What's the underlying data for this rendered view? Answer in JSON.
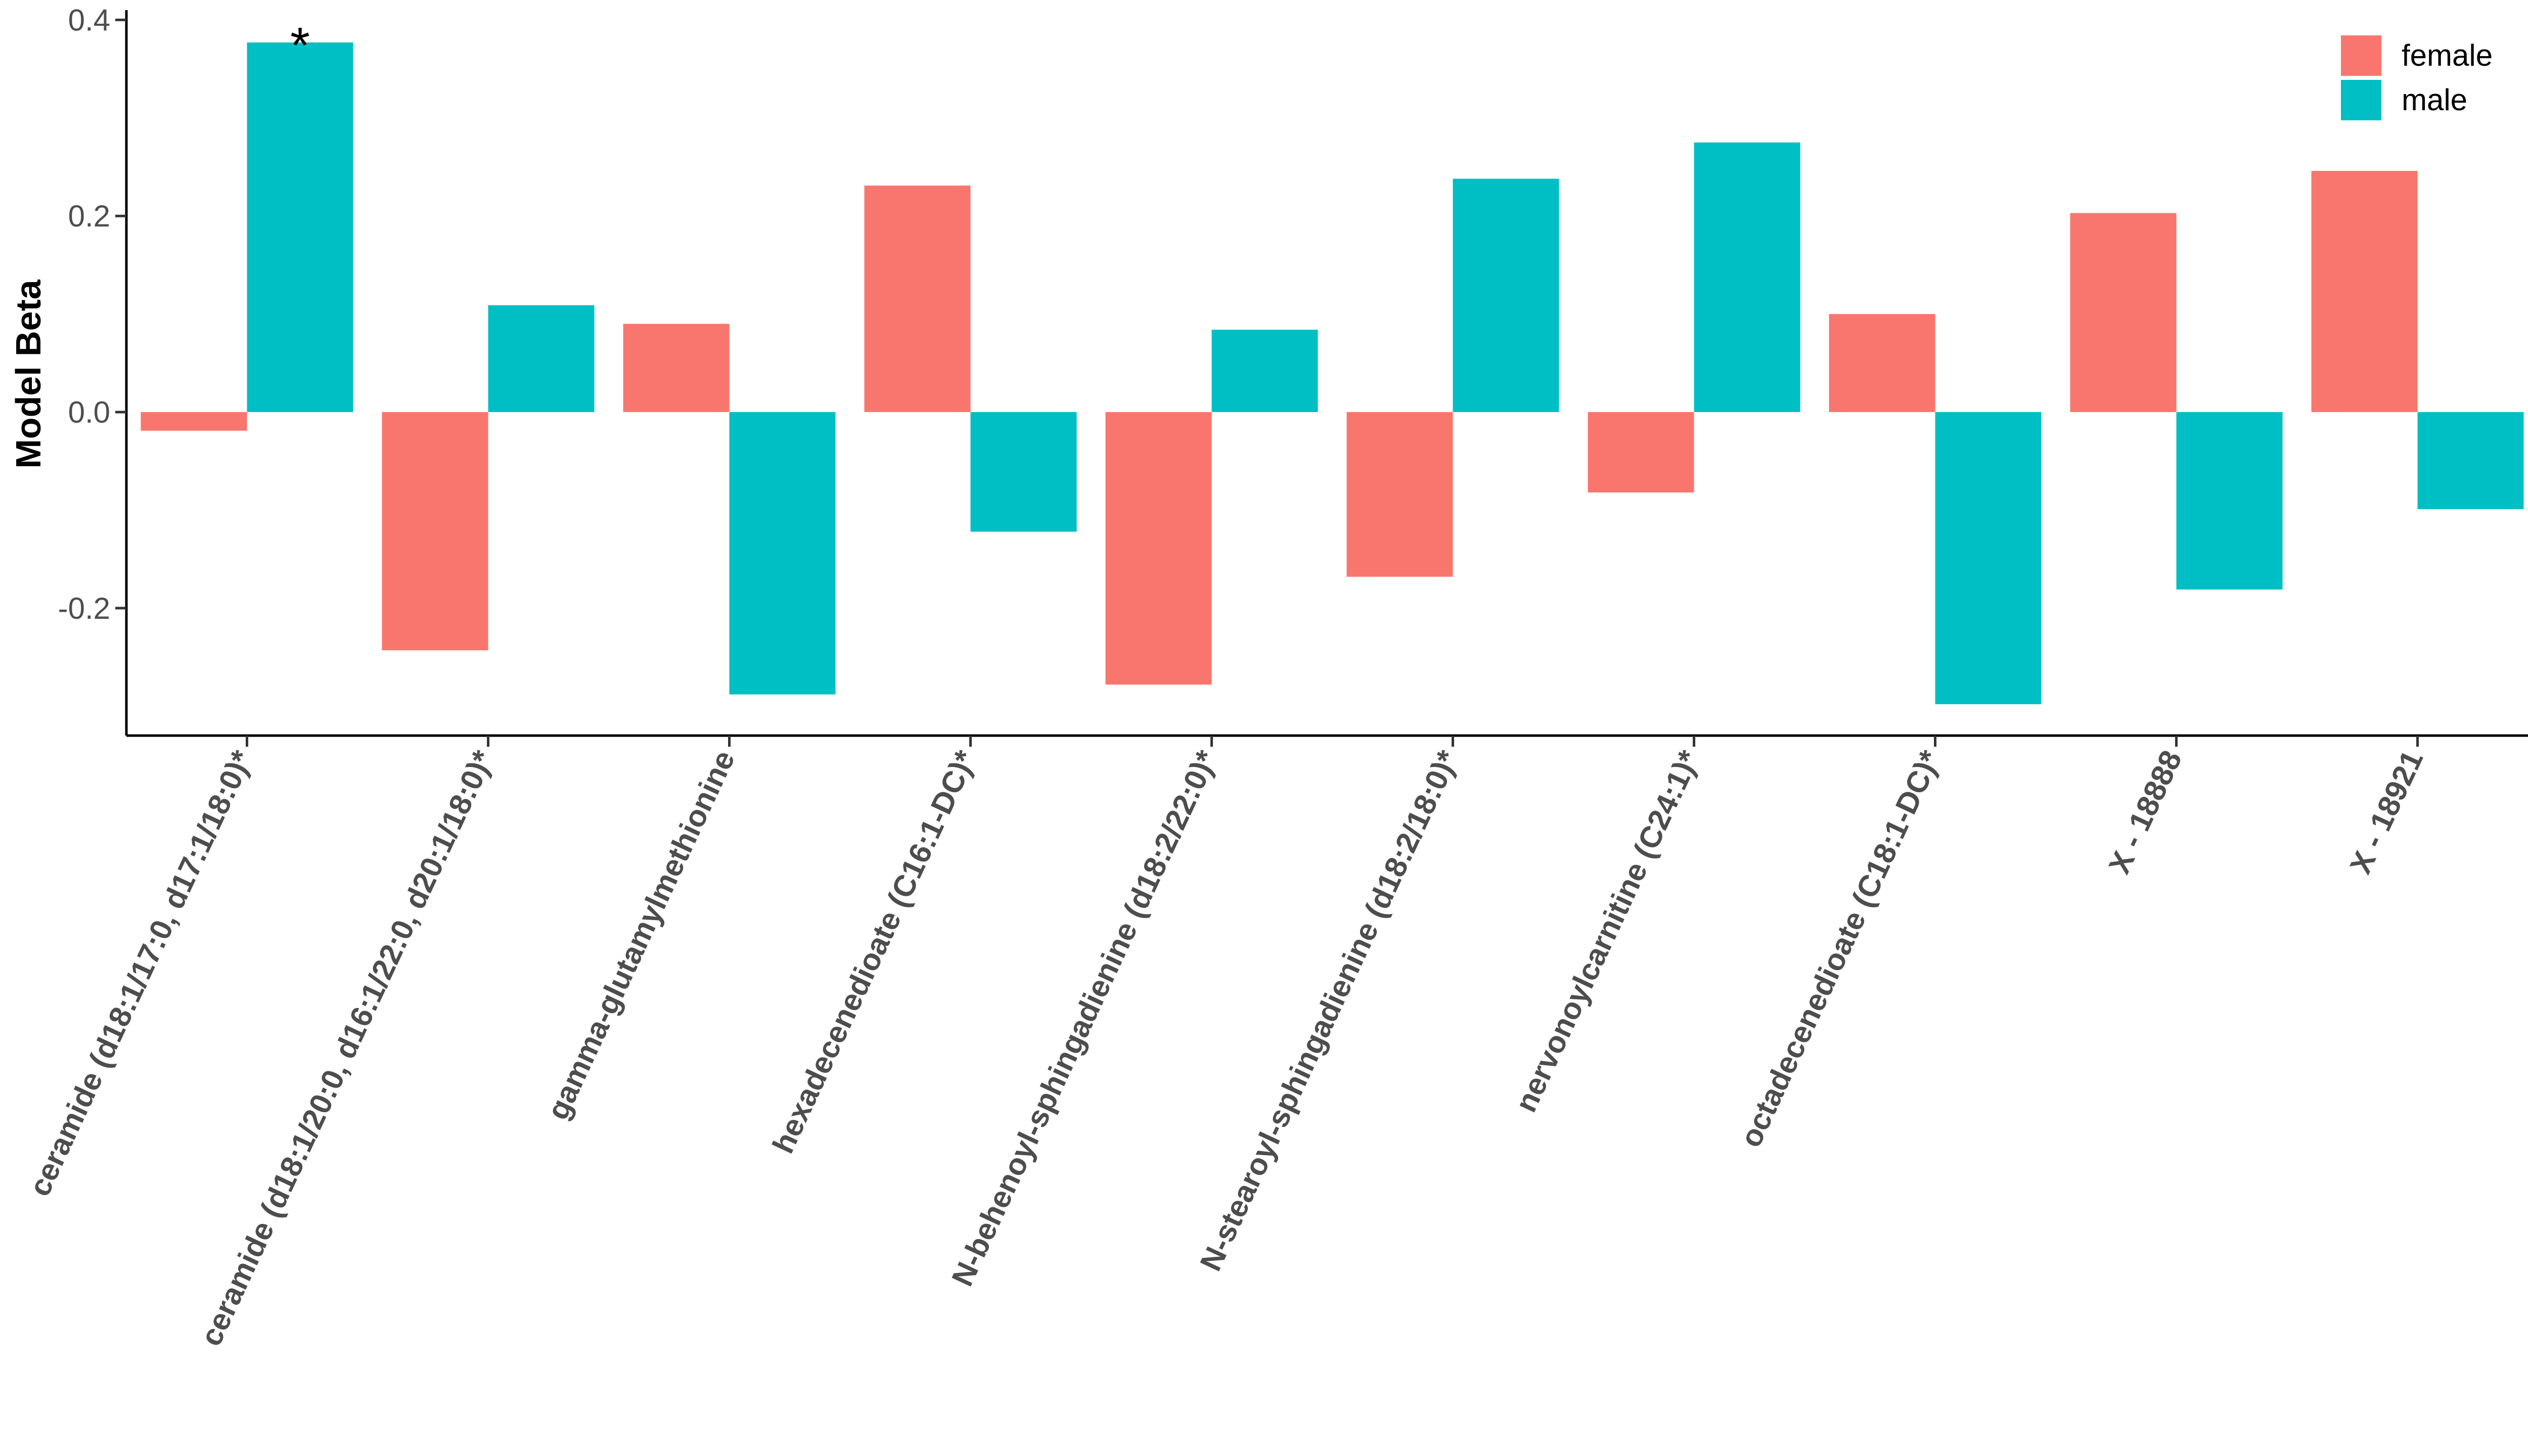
{
  "chart_data": {
    "type": "bar",
    "title": "",
    "xlabel": "",
    "ylabel": "Model Beta",
    "ylim": [
      -0.33,
      0.41
    ],
    "yticks": [
      -0.2,
      0.0,
      0.2,
      0.4
    ],
    "ytick_labels": [
      "-0.2",
      "0.0",
      "0.2",
      "0.4"
    ],
    "grid": false,
    "legend_position": "top-right",
    "categories": [
      "ceramide (d18:1/17:0, d17:1/18:0)*",
      "ceramide (d18:1/20:0, d16:1/22:0, d20:1/18:0)*",
      "gamma-glutamylmethionine",
      "hexadecenedioate (C16:1-DC)*",
      "N-behenoyl-sphingadienine (d18:2/22:0)*",
      "N-stearoyl-sphingadienine (d18:2/18:0)*",
      "nervonoylcarnitine (C24:1)*",
      "octadecenedioate (C18:1-DC)*",
      "X - 18888",
      "X - 18921"
    ],
    "series": [
      {
        "name": "female",
        "color": "#F8766D",
        "values": [
          -0.019,
          -0.243,
          0.09,
          0.231,
          -0.278,
          -0.168,
          -0.082,
          0.1,
          0.203,
          0.246
        ]
      },
      {
        "name": "male",
        "color": "#00BFC4",
        "values": [
          0.377,
          0.109,
          -0.288,
          -0.122,
          0.084,
          0.238,
          0.275,
          -0.298,
          -0.181,
          -0.099
        ]
      }
    ],
    "annotations": [
      {
        "text": "*",
        "category_index": 0,
        "series": "male"
      }
    ]
  }
}
